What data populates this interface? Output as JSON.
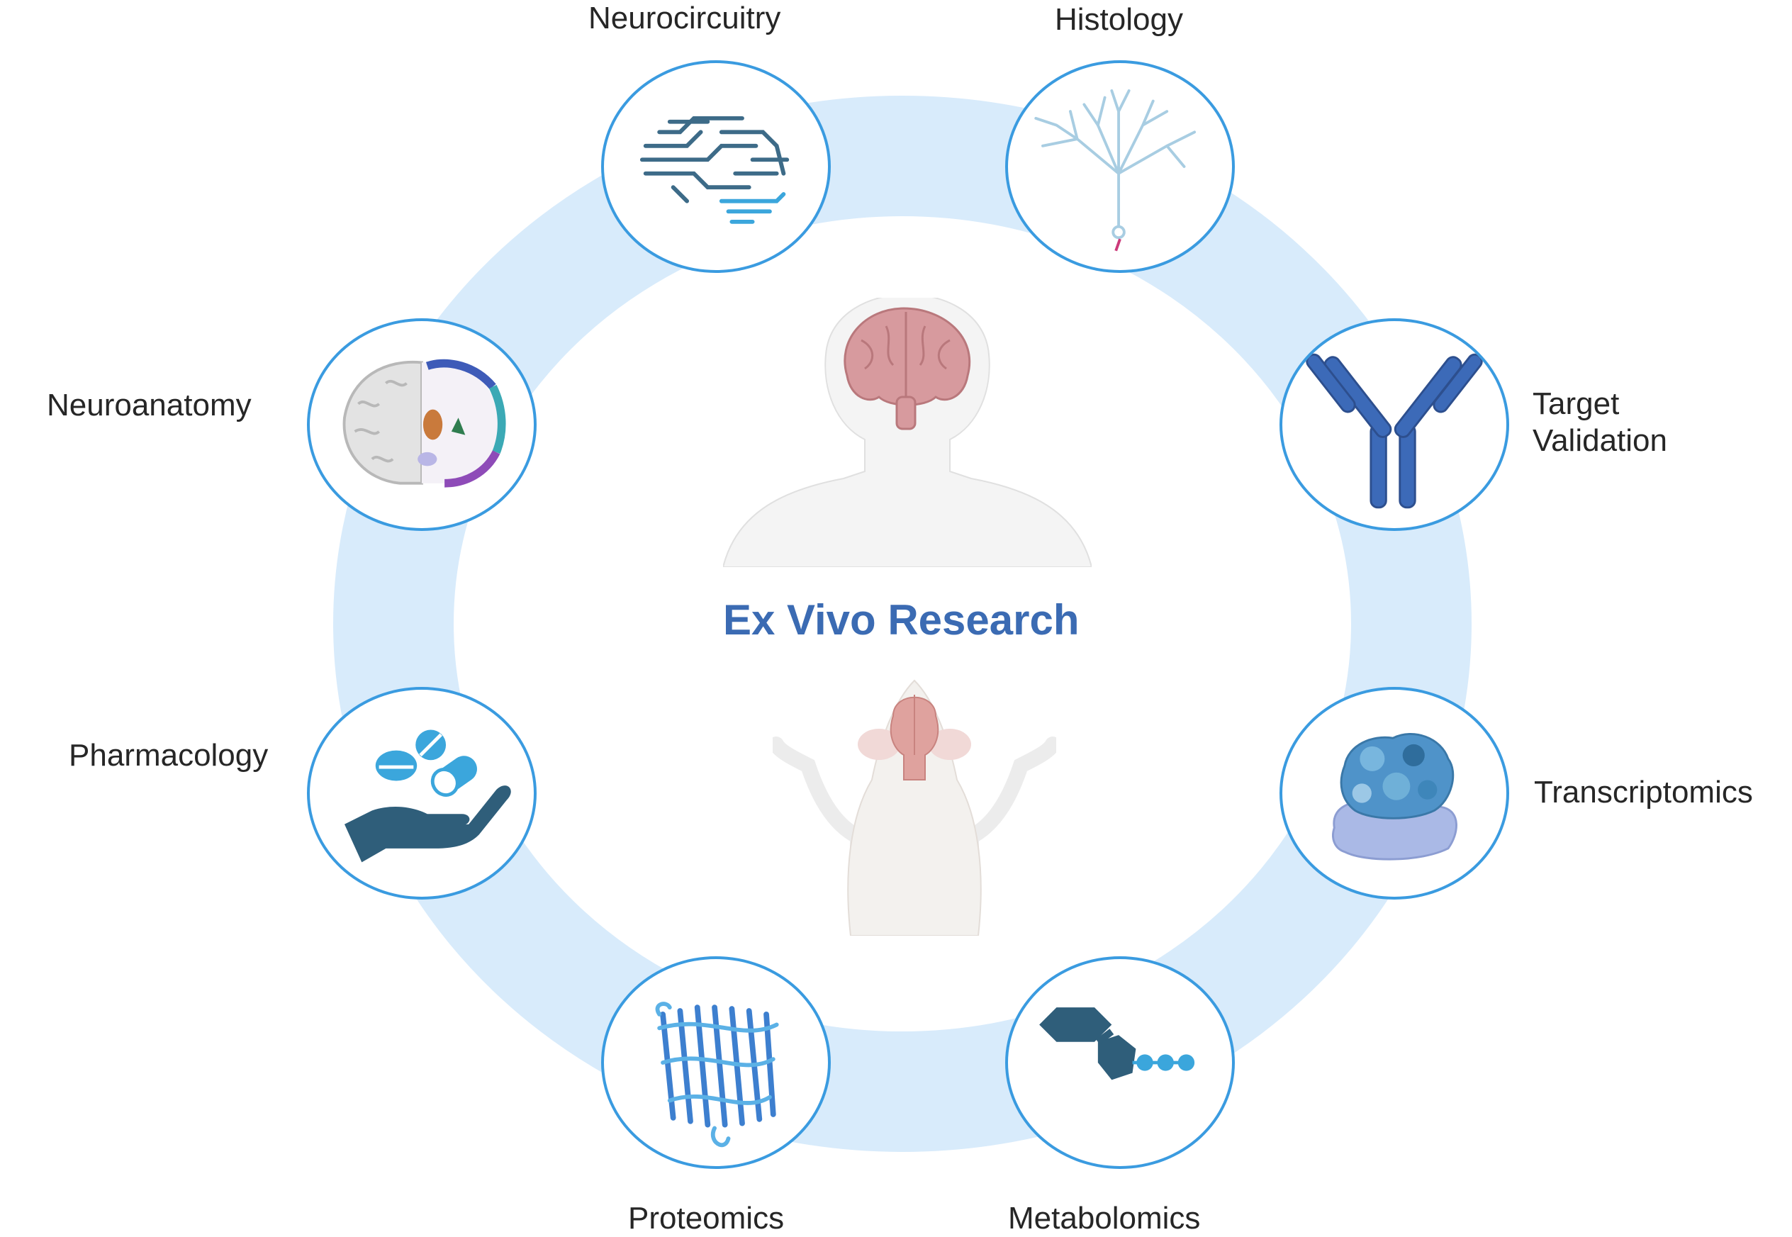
{
  "title": "Ex Vivo Research",
  "ring_color": "#d8ebfb",
  "node_border_color": "#3a9be0",
  "title_color": "#3b6bb3",
  "center": {
    "top_figure": "human-with-brain",
    "bottom_figure": "mouse-with-brain"
  },
  "nodes": [
    {
      "id": "neurocircuitry",
      "label": "Neurocircuitry",
      "icon": "circuit-brain-icon"
    },
    {
      "id": "histology",
      "label": "Histology",
      "icon": "neuron-icon"
    },
    {
      "id": "target_validation",
      "label_line1": "Target",
      "label_line2": "Validation",
      "icon": "antibody-icon"
    },
    {
      "id": "transcriptomics",
      "label": "Transcriptomics",
      "icon": "protein-complex-icon"
    },
    {
      "id": "metabolomics",
      "label": "Metabolomics",
      "icon": "molecule-chain-icon"
    },
    {
      "id": "proteomics",
      "label": "Proteomics",
      "icon": "protein-barrel-icon"
    },
    {
      "id": "pharmacology",
      "label": "Pharmacology",
      "icon": "hand-pills-icon"
    },
    {
      "id": "neuroanatomy",
      "label": "Neuroanatomy",
      "icon": "brain-section-icon"
    }
  ]
}
